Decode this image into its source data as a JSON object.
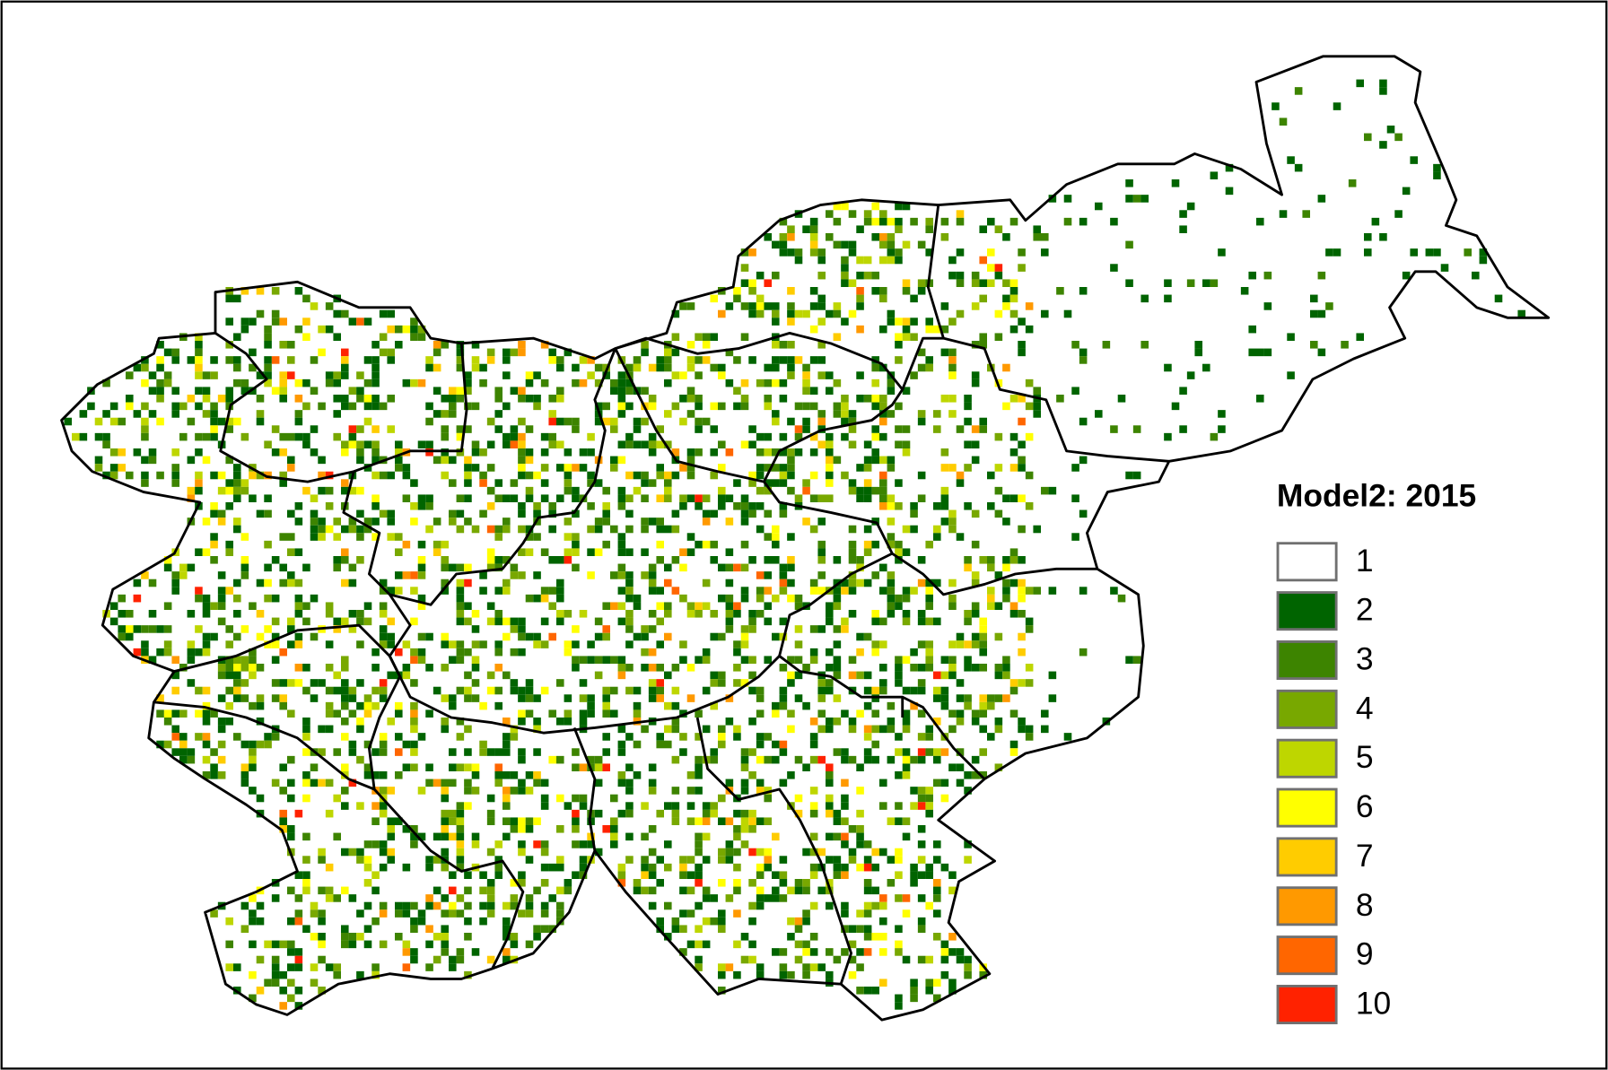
{
  "legend": {
    "title": "Model2: 2015",
    "items": [
      {
        "value": 1,
        "color": "#ffffff"
      },
      {
        "value": 2,
        "color": "#006400"
      },
      {
        "value": 3,
        "color": "#3d8400"
      },
      {
        "value": 4,
        "color": "#78a800"
      },
      {
        "value": 5,
        "color": "#bed600"
      },
      {
        "value": 6,
        "color": "#ffff00"
      },
      {
        "value": 7,
        "color": "#ffcc00"
      },
      {
        "value": 8,
        "color": "#ff9900"
      },
      {
        "value": 9,
        "color": "#ff6600"
      },
      {
        "value": 10,
        "color": "#ff2200"
      }
    ]
  }
}
